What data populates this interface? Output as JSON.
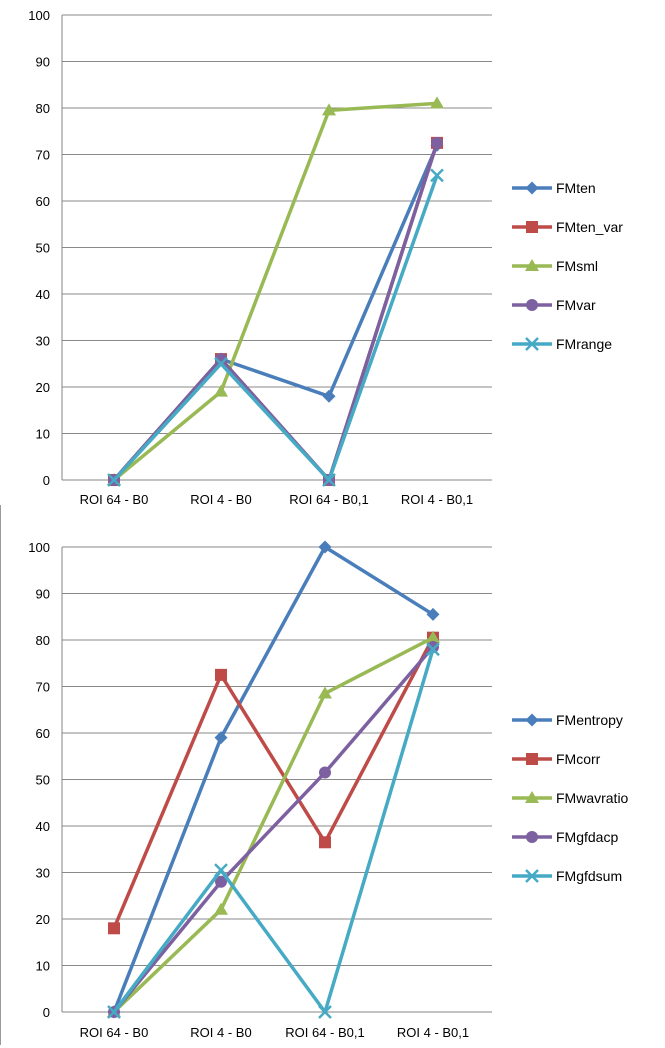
{
  "chart_data": [
    {
      "type": "line",
      "categories": [
        "ROI 64 - B0",
        "ROI 4 - B0",
        "ROI 64 - B0,1",
        "ROI 4 - B0,1"
      ],
      "ylim": [
        0,
        100
      ],
      "yticks": [
        0,
        10,
        20,
        30,
        40,
        50,
        60,
        70,
        80,
        90,
        100
      ],
      "grid": true,
      "legend_position": "right",
      "series": [
        {
          "name": "FMten",
          "color": "#4a7ebb",
          "marker": "diamond",
          "values": [
            0,
            26,
            18,
            72
          ]
        },
        {
          "name": "FMten_var",
          "color": "#be4b48",
          "marker": "square",
          "values": [
            0,
            26,
            0,
            72.5
          ]
        },
        {
          "name": "FMsml",
          "color": "#98b954",
          "marker": "triangle",
          "values": [
            0,
            19,
            79.5,
            81
          ]
        },
        {
          "name": "FMvar",
          "color": "#7d60a0",
          "marker": "circle",
          "values": [
            0,
            26,
            0,
            72.5
          ]
        },
        {
          "name": "FMrange",
          "color": "#46aac5",
          "marker": "x",
          "values": [
            0,
            25,
            0,
            65.5
          ]
        }
      ]
    },
    {
      "type": "line",
      "categories": [
        "ROI 64 - B0",
        "ROI 4 - B0",
        "ROI 64 - B0,1",
        "ROI 4 - B0,1"
      ],
      "ylim": [
        0,
        100
      ],
      "yticks": [
        0,
        10,
        20,
        30,
        40,
        50,
        60,
        70,
        80,
        90,
        100
      ],
      "grid": true,
      "legend_position": "right",
      "series": [
        {
          "name": "FMentropy",
          "color": "#4a7ebb",
          "marker": "diamond",
          "values": [
            0,
            59,
            100,
            85.5
          ]
        },
        {
          "name": "FMcorr",
          "color": "#be4b48",
          "marker": "square",
          "values": [
            18,
            72.5,
            36.5,
            80.5
          ]
        },
        {
          "name": "FMwavratio",
          "color": "#98b954",
          "marker": "triangle",
          "values": [
            0,
            22,
            68.5,
            80.5
          ]
        },
        {
          "name": "FMgfdacp",
          "color": "#7d60a0",
          "marker": "circle",
          "values": [
            0,
            28,
            51.5,
            78.5
          ]
        },
        {
          "name": "FMgfdsum",
          "color": "#46aac5",
          "marker": "x",
          "values": [
            0,
            30.5,
            0,
            78
          ]
        }
      ]
    }
  ]
}
